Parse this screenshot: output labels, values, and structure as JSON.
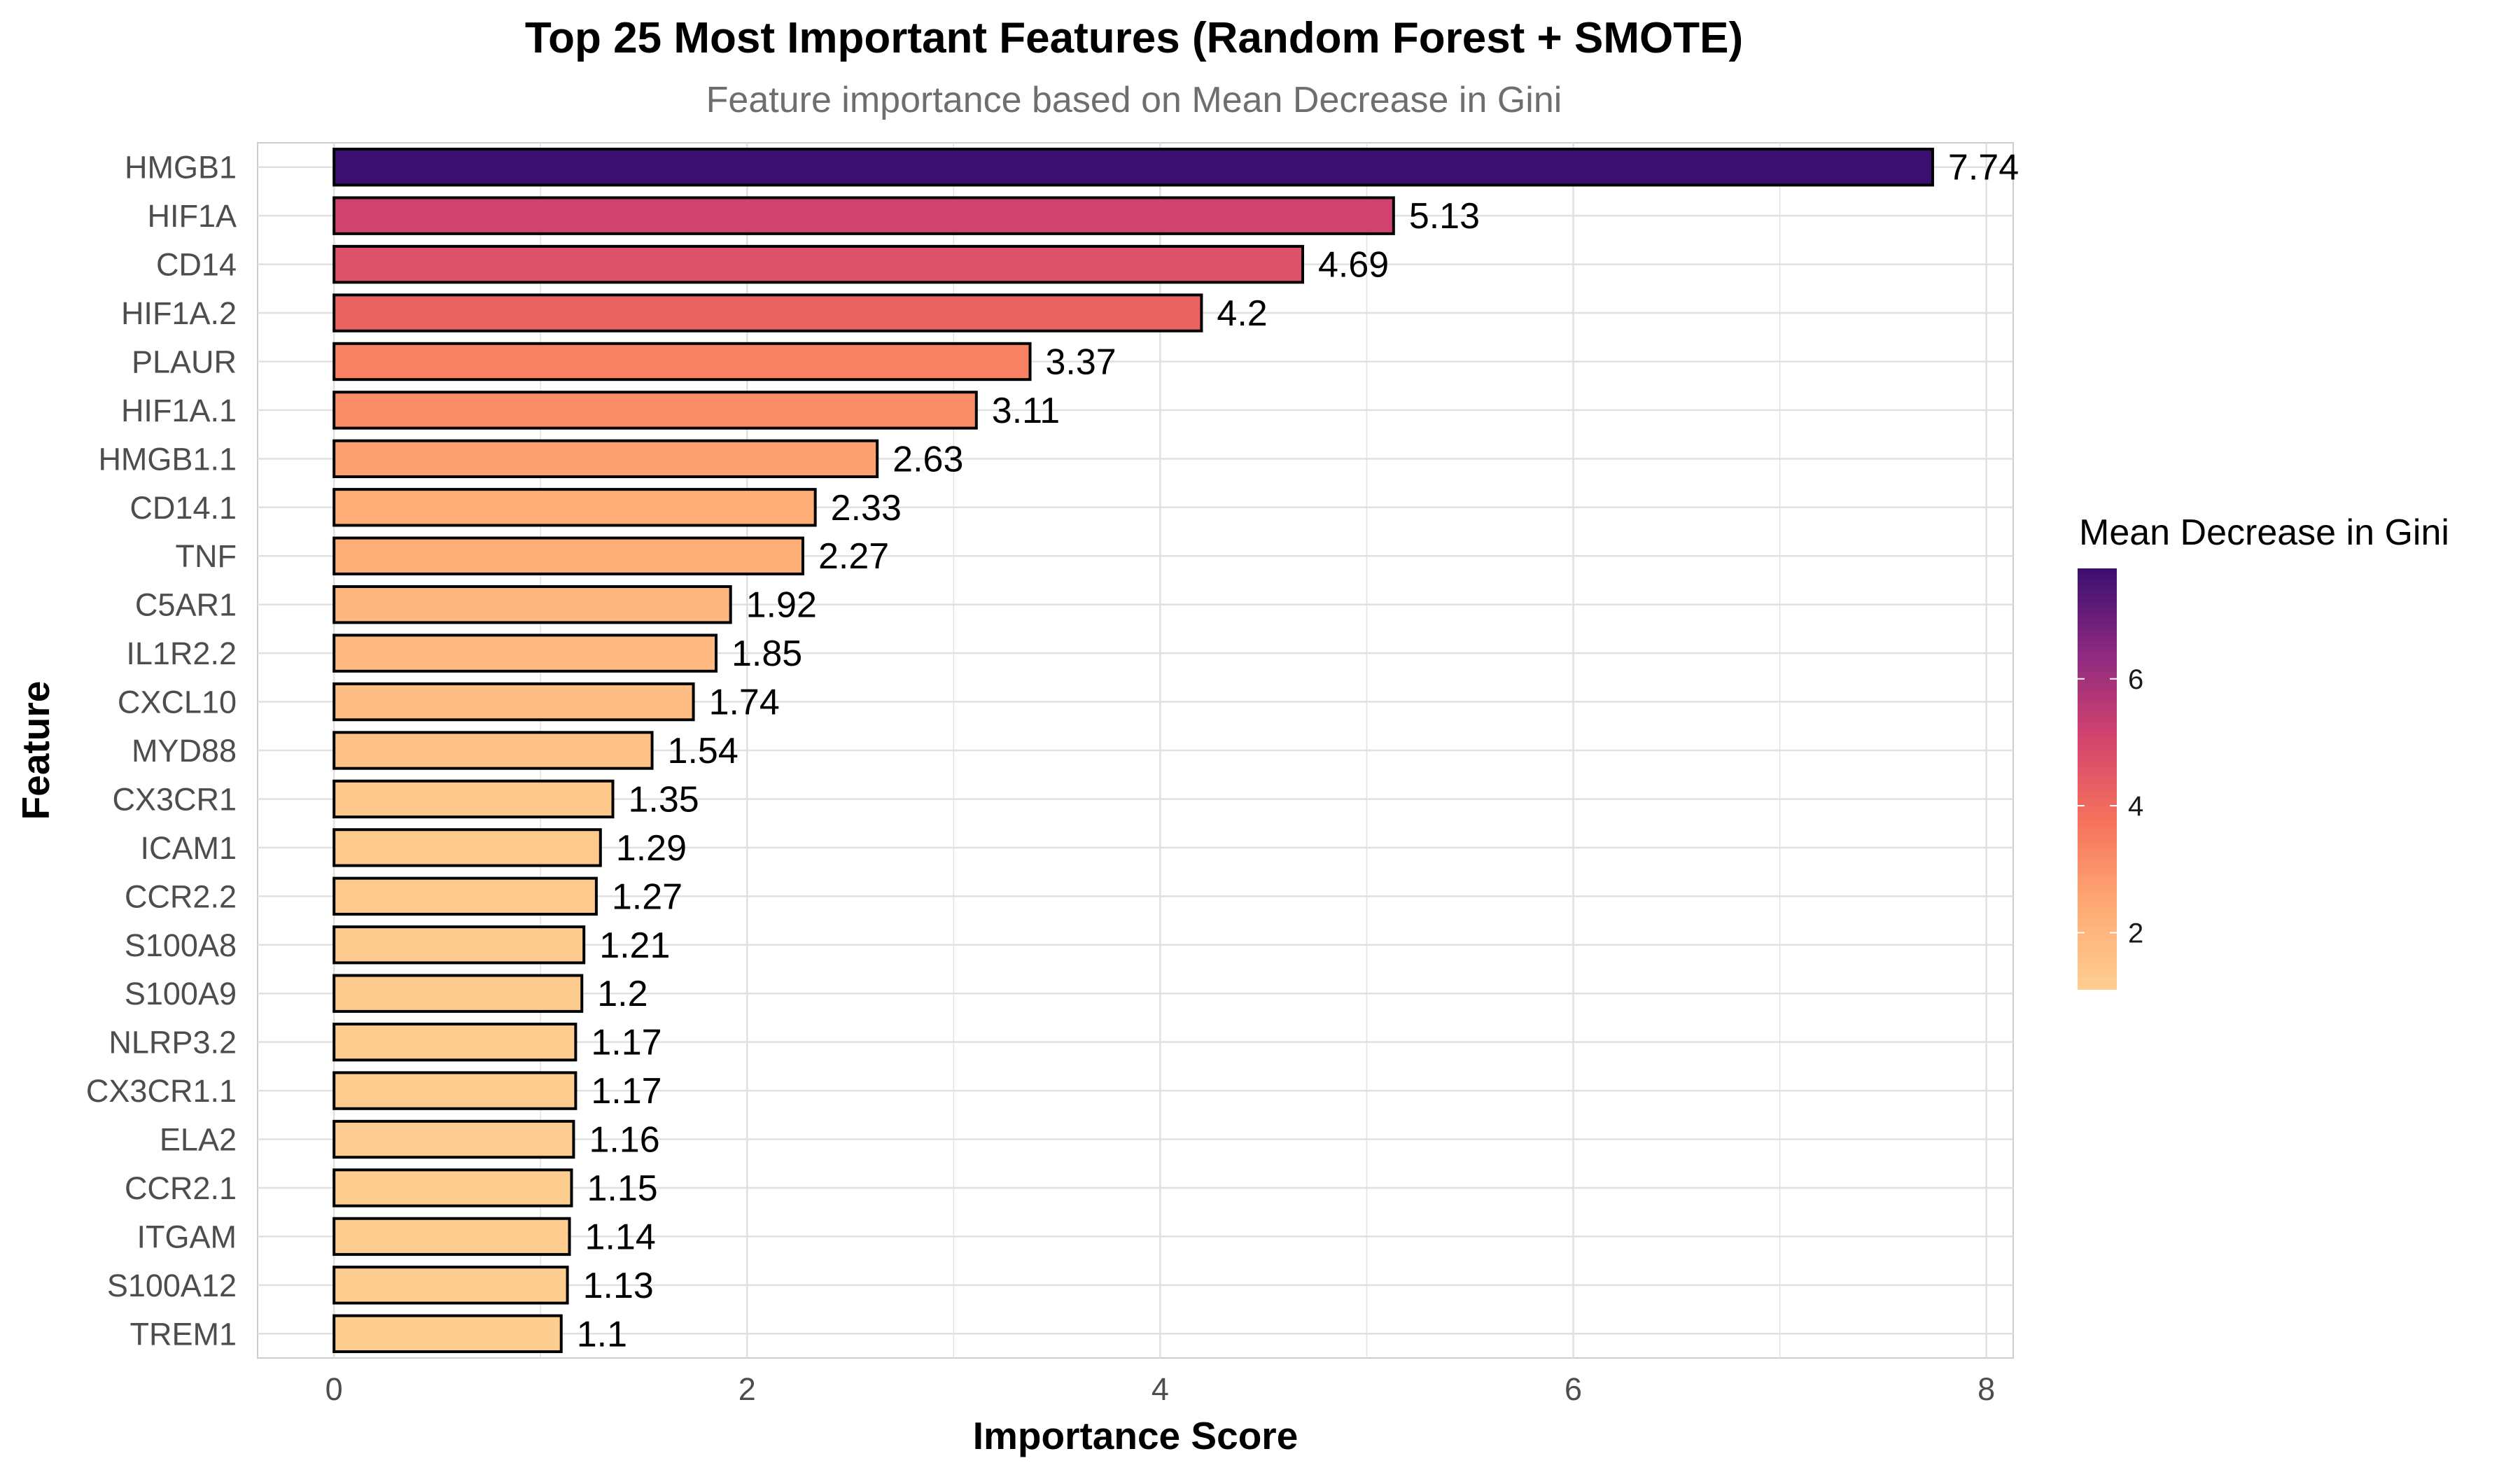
{
  "chart_data": {
    "type": "bar",
    "orientation": "horizontal",
    "title": "Top 25 Most Important Features (Random Forest + SMOTE)",
    "subtitle": "Feature importance based on Mean Decrease in Gini",
    "xlabel": "Importance Score",
    "ylabel": "Feature",
    "xlim": [
      -0.37,
      8.13
    ],
    "xticks": [
      0,
      2,
      4,
      6,
      8
    ],
    "grid": true,
    "categories": [
      "HMGB1",
      "HIF1A",
      "CD14",
      "HIF1A.2",
      "PLAUR",
      "HIF1A.1",
      "HMGB1.1",
      "CD14.1",
      "TNF",
      "C5AR1",
      "IL1R2.2",
      "CXCL10",
      "MYD88",
      "CX3CR1",
      "ICAM1",
      "CCR2.2",
      "S100A8",
      "S100A9",
      "NLRP3.2",
      "CX3CR1.1",
      "ELA2",
      "CCR2.1",
      "ITGAM",
      "S100A12",
      "TREM1"
    ],
    "values": [
      7.74,
      5.13,
      4.69,
      4.2,
      3.37,
      3.11,
      2.63,
      2.33,
      2.27,
      1.92,
      1.85,
      1.74,
      1.54,
      1.35,
      1.29,
      1.27,
      1.21,
      1.2,
      1.17,
      1.17,
      1.16,
      1.15,
      1.14,
      1.13,
      1.1
    ],
    "value_labels": [
      "7.74",
      "5.13",
      "4.69",
      "4.2",
      "3.37",
      "3.11",
      "2.63",
      "2.33",
      "2.27",
      "1.92",
      "1.85",
      "1.74",
      "1.54",
      "1.35",
      "1.29",
      "1.27",
      "1.21",
      "1.2",
      "1.17",
      "1.17",
      "1.16",
      "1.15",
      "1.14",
      "1.13",
      "1.1"
    ],
    "legend": {
      "title": "Mean Decrease in Gini",
      "placement": "right",
      "range": [
        1.1,
        7.74
      ],
      "ticks": [
        2,
        4,
        6
      ],
      "tick_labels": [
        "2",
        "4",
        "6"
      ],
      "palette": "magma"
    },
    "colors": {
      "bar_outline": "#000000",
      "grid": "#e0e0e0",
      "low": "#fece91",
      "high": "#3b0f70"
    }
  }
}
